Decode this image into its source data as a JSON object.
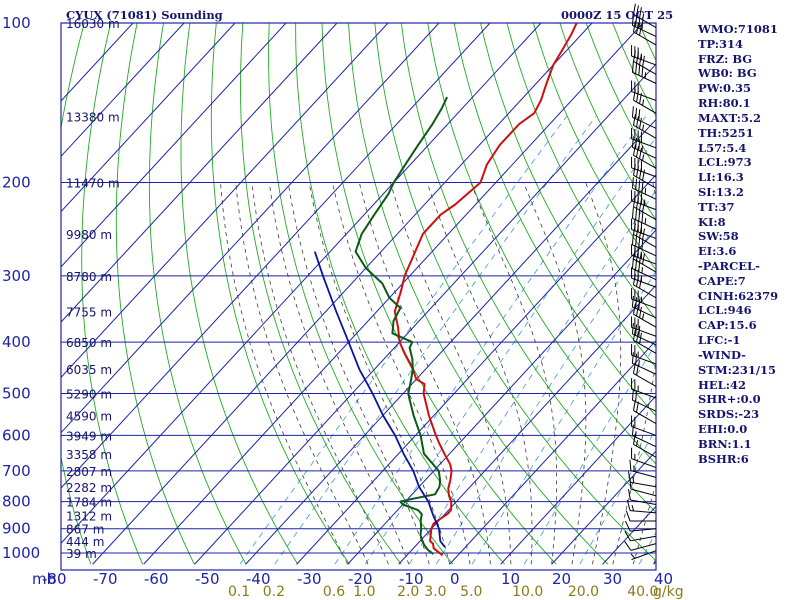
{
  "header": {
    "title": "CYUX (71081) Sounding",
    "time": "0000Z 15 OCT 25"
  },
  "stats": [
    "WMO:71081",
    "TP:314",
    "FRZ: BG",
    "WB0: BG",
    "PW:0.35",
    "RH:80.1",
    "MAXT:5.2",
    "TH:5251",
    "L57:5.4",
    "LCL:973",
    "LI:16.3",
    "SI:13.2",
    "TT:37",
    "KI:8",
    "SW:58",
    "EI:3.6",
    "-PARCEL-",
    "CAPE:7",
    "CINH:62379",
    "LCL:946",
    "CAP:15.6",
    "LFC:-1",
    "-WIND-",
    "STM:231/15",
    "HEL:42",
    "SHR+:0.0",
    "SRDS:-23",
    "EHI:0.0",
    "BRN:1.1",
    "BSHR:6"
  ],
  "colors": {
    "isobar": "#1e22a8",
    "isotherm": "#1e22a8",
    "dry_adiabat": "#22aa22",
    "moist_adiabat": "#3a3a3a",
    "mixing_ratio": "#3a9ad0",
    "temperature": "#cc1010",
    "dewpoint": "#0a5a12",
    "parcel": "#0a14a0",
    "wind_barb": "#000000"
  },
  "chart_data": {
    "type": "line",
    "chart_kind": "skew-T log-P sounding",
    "pressure_unit_label": "mb",
    "pressure_levels": [
      100,
      200,
      300,
      400,
      500,
      600,
      700,
      800,
      900,
      1000
    ],
    "pressure_tick_labels": [
      "100",
      "200",
      "300",
      "400",
      "500",
      "600",
      "700",
      "800",
      "900",
      "1000"
    ],
    "temperature_ticks": [
      -80,
      -70,
      -60,
      -50,
      -40,
      -30,
      -20,
      -10,
      0,
      10,
      20,
      30,
      40
    ],
    "temperature_tick_labels": [
      "-80",
      "-70",
      "-60",
      "-50",
      "-40",
      "-30",
      "-20",
      "-10",
      "0",
      "10",
      "20",
      "30",
      "40"
    ],
    "mixing_ratio_values": [
      0.1,
      0.2,
      0.6,
      1.0,
      2.0,
      3.0,
      5.0,
      10.0,
      20.0,
      40.0
    ],
    "mixing_ratio_labels": [
      "0.1",
      "0.2",
      "0.6",
      "1.0",
      "2.0",
      "3.0",
      "5.0",
      "10.0",
      "20.0",
      "40.0"
    ],
    "mixing_ratio_unit": "g/kg",
    "height_labels": [
      {
        "p": 100,
        "label": "16030 m"
      },
      {
        "p": 150,
        "label": "13380 m"
      },
      {
        "p": 200,
        "label": "11470 m"
      },
      {
        "p": 250,
        "label": "9980 m"
      },
      {
        "p": 300,
        "label": "8780 m"
      },
      {
        "p": 350,
        "label": "7755 m"
      },
      {
        "p": 400,
        "label": "6850 m"
      },
      {
        "p": 450,
        "label": "6035 m"
      },
      {
        "p": 500,
        "label": "5290 m"
      },
      {
        "p": 550,
        "label": "4590 m"
      },
      {
        "p": 600,
        "label": "3949 m"
      },
      {
        "p": 650,
        "label": "3358 m"
      },
      {
        "p": 700,
        "label": "2807 m"
      },
      {
        "p": 750,
        "label": "2282 m"
      },
      {
        "p": 800,
        "label": "1784 m"
      },
      {
        "p": 850,
        "label": "1312 m"
      },
      {
        "p": 900,
        "label": "867 m"
      },
      {
        "p": 950,
        "label": "444 m"
      },
      {
        "p": 1000,
        "label": "39 m"
      }
    ],
    "series": [
      {
        "key": "temperature",
        "points": [
          [
            1010,
            -3
          ],
          [
            995,
            -4.5
          ],
          [
            980,
            -6
          ],
          [
            960,
            -7
          ],
          [
            950,
            -8
          ],
          [
            925,
            -9
          ],
          [
            900,
            -10
          ],
          [
            880,
            -10.5
          ],
          [
            860,
            -10
          ],
          [
            845,
            -9.5
          ],
          [
            830,
            -9.5
          ],
          [
            800,
            -11
          ],
          [
            780,
            -12.5
          ],
          [
            755,
            -14
          ],
          [
            730,
            -15
          ],
          [
            700,
            -16.5
          ],
          [
            680,
            -18
          ],
          [
            650,
            -21
          ],
          [
            620,
            -24
          ],
          [
            600,
            -26
          ],
          [
            550,
            -31
          ],
          [
            500,
            -36
          ],
          [
            480,
            -37.5
          ],
          [
            470,
            -40
          ],
          [
            450,
            -42.5
          ],
          [
            420,
            -47
          ],
          [
            400,
            -50
          ],
          [
            375,
            -53
          ],
          [
            350,
            -56.5
          ],
          [
            320,
            -59
          ],
          [
            300,
            -61
          ],
          [
            280,
            -62.5
          ],
          [
            250,
            -65
          ],
          [
            230,
            -65
          ],
          [
            220,
            -64
          ],
          [
            200,
            -63
          ],
          [
            185,
            -65
          ],
          [
            170,
            -66
          ],
          [
            155,
            -66
          ],
          [
            148,
            -65
          ],
          [
            140,
            -66
          ],
          [
            130,
            -68
          ],
          [
            120,
            -70
          ],
          [
            112,
            -71
          ],
          [
            105,
            -72
          ],
          [
            100,
            -73
          ]
        ]
      },
      {
        "key": "dewpoint",
        "points": [
          [
            1005,
            -5
          ],
          [
            985,
            -7
          ],
          [
            965,
            -8.5
          ],
          [
            950,
            -9.5
          ],
          [
            925,
            -11
          ],
          [
            900,
            -12
          ],
          [
            870,
            -13.5
          ],
          [
            845,
            -14.5
          ],
          [
            830,
            -16
          ],
          [
            810,
            -20
          ],
          [
            800,
            -21
          ],
          [
            790,
            -19
          ],
          [
            775,
            -15.5
          ],
          [
            750,
            -16
          ],
          [
            730,
            -17
          ],
          [
            700,
            -19
          ],
          [
            650,
            -25
          ],
          [
            600,
            -29
          ],
          [
            550,
            -34
          ],
          [
            510,
            -38
          ],
          [
            500,
            -39
          ],
          [
            470,
            -41
          ],
          [
            450,
            -42.5
          ],
          [
            430,
            -44.5
          ],
          [
            410,
            -47
          ],
          [
            400,
            -47.5
          ],
          [
            385,
            -53
          ],
          [
            365,
            -55
          ],
          [
            345,
            -56
          ],
          [
            330,
            -60
          ],
          [
            310,
            -64
          ],
          [
            290,
            -70
          ],
          [
            270,
            -75
          ],
          [
            250,
            -77
          ],
          [
            230,
            -78
          ],
          [
            210,
            -79
          ],
          [
            200,
            -80
          ],
          [
            185,
            -81
          ],
          [
            170,
            -82
          ],
          [
            155,
            -83
          ],
          [
            145,
            -84
          ],
          [
            138,
            -85
          ]
        ]
      },
      {
        "key": "parcel",
        "points": [
          [
            975,
            -4
          ],
          [
            950,
            -6
          ],
          [
            900,
            -8.5
          ],
          [
            850,
            -12
          ],
          [
            800,
            -15.5
          ],
          [
            750,
            -20
          ],
          [
            700,
            -24
          ],
          [
            650,
            -29
          ],
          [
            600,
            -34
          ],
          [
            550,
            -40
          ],
          [
            500,
            -46
          ],
          [
            450,
            -53
          ],
          [
            400,
            -60
          ],
          [
            350,
            -68
          ],
          [
            300,
            -77
          ],
          [
            270,
            -83
          ]
        ]
      }
    ],
    "wind_barbs": [
      {
        "p": 102,
        "dir": 300,
        "kt": 35
      },
      {
        "p": 106,
        "dir": 295,
        "kt": 40
      },
      {
        "p": 110,
        "dir": 300,
        "kt": 30
      },
      {
        "p": 120,
        "dir": 290,
        "kt": 35
      },
      {
        "p": 125,
        "dir": 300,
        "kt": 40
      },
      {
        "p": 130,
        "dir": 295,
        "kt": 45
      },
      {
        "p": 140,
        "dir": 290,
        "kt": 30
      },
      {
        "p": 148,
        "dir": 300,
        "kt": 35
      },
      {
        "p": 158,
        "dir": 295,
        "kt": 30
      },
      {
        "p": 165,
        "dir": 300,
        "kt": 35
      },
      {
        "p": 172,
        "dir": 290,
        "kt": 40
      },
      {
        "p": 180,
        "dir": 295,
        "kt": 35
      },
      {
        "p": 188,
        "dir": 300,
        "kt": 35
      },
      {
        "p": 195,
        "dir": 290,
        "kt": 40
      },
      {
        "p": 205,
        "dir": 300,
        "kt": 40
      },
      {
        "p": 215,
        "dir": 295,
        "kt": 45
      },
      {
        "p": 225,
        "dir": 290,
        "kt": 45
      },
      {
        "p": 235,
        "dir": 300,
        "kt": 40
      },
      {
        "p": 245,
        "dir": 295,
        "kt": 45
      },
      {
        "p": 255,
        "dir": 290,
        "kt": 40
      },
      {
        "p": 265,
        "dir": 300,
        "kt": 40
      },
      {
        "p": 275,
        "dir": 295,
        "kt": 40
      },
      {
        "p": 285,
        "dir": 290,
        "kt": 35
      },
      {
        "p": 295,
        "dir": 300,
        "kt": 40
      },
      {
        "p": 305,
        "dir": 295,
        "kt": 35
      },
      {
        "p": 315,
        "dir": 290,
        "kt": 35
      },
      {
        "p": 330,
        "dir": 300,
        "kt": 30
      },
      {
        "p": 345,
        "dir": 290,
        "kt": 35
      },
      {
        "p": 360,
        "dir": 295,
        "kt": 30
      },
      {
        "p": 375,
        "dir": 300,
        "kt": 35
      },
      {
        "p": 390,
        "dir": 290,
        "kt": 30
      },
      {
        "p": 405,
        "dir": 295,
        "kt": 30
      },
      {
        "p": 420,
        "dir": 300,
        "kt": 30
      },
      {
        "p": 440,
        "dir": 290,
        "kt": 25
      },
      {
        "p": 460,
        "dir": 295,
        "kt": 25
      },
      {
        "p": 485,
        "dir": 300,
        "kt": 20
      },
      {
        "p": 510,
        "dir": 290,
        "kt": 25
      },
      {
        "p": 540,
        "dir": 295,
        "kt": 20
      },
      {
        "p": 570,
        "dir": 300,
        "kt": 20
      },
      {
        "p": 600,
        "dir": 290,
        "kt": 20
      },
      {
        "p": 630,
        "dir": 295,
        "kt": 15
      },
      {
        "p": 660,
        "dir": 300,
        "kt": 15
      },
      {
        "p": 690,
        "dir": 290,
        "kt": 15
      },
      {
        "p": 720,
        "dir": 285,
        "kt": 15
      },
      {
        "p": 750,
        "dir": 280,
        "kt": 15
      },
      {
        "p": 780,
        "dir": 285,
        "kt": 10
      },
      {
        "p": 810,
        "dir": 280,
        "kt": 10
      },
      {
        "p": 840,
        "dir": 275,
        "kt": 15
      },
      {
        "p": 870,
        "dir": 270,
        "kt": 10
      },
      {
        "p": 900,
        "dir": 265,
        "kt": 10
      },
      {
        "p": 930,
        "dir": 260,
        "kt": 10
      },
      {
        "p": 960,
        "dir": 255,
        "kt": 10
      },
      {
        "p": 990,
        "dir": 250,
        "kt": 5
      }
    ],
    "ylim": [
      1050,
      100
    ],
    "xlim": [
      -80,
      40
    ],
    "grid": true
  }
}
